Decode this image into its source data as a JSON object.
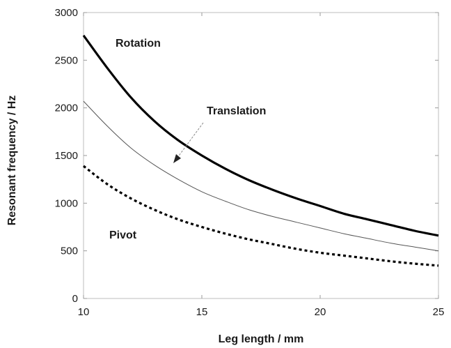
{
  "chart_data": {
    "type": "line",
    "xlabel": "Leg length / mm",
    "ylabel": "Resonant frequency / Hz",
    "xlim": [
      10,
      25
    ],
    "ylim": [
      0,
      3000
    ],
    "x_ticks": [
      "10",
      "15",
      "20",
      "25"
    ],
    "y_ticks": [
      "0",
      "500",
      "1000",
      "1500",
      "2000",
      "2500",
      "3000"
    ],
    "grid": false,
    "legend": "none",
    "series": [
      {
        "name": "Rotation",
        "style": "solid-thick",
        "color": "#000000",
        "x": [
          10,
          11,
          12,
          13,
          14,
          15,
          16,
          17,
          18,
          19,
          20,
          21,
          22,
          23,
          24,
          25
        ],
        "y": [
          2760,
          2420,
          2110,
          1860,
          1660,
          1500,
          1360,
          1240,
          1140,
          1050,
          970,
          890,
          830,
          770,
          710,
          660
        ]
      },
      {
        "name": "Translation",
        "style": "solid-thin",
        "color": "#555555",
        "x": [
          10,
          11,
          12,
          13,
          14,
          15,
          16,
          17,
          18,
          19,
          20,
          21,
          22,
          23,
          24,
          25
        ],
        "y": [
          2070,
          1810,
          1580,
          1400,
          1250,
          1120,
          1020,
          930,
          860,
          800,
          740,
          680,
          630,
          580,
          540,
          500
        ]
      },
      {
        "name": "Pivot",
        "style": "dotted",
        "color": "#000000",
        "x": [
          10,
          11,
          12,
          13,
          14,
          15,
          16,
          17,
          18,
          19,
          20,
          21,
          22,
          23,
          24,
          25
        ],
        "y": [
          1390,
          1200,
          1050,
          930,
          830,
          750,
          680,
          620,
          570,
          520,
          480,
          450,
          420,
          390,
          365,
          345
        ]
      }
    ]
  }
}
